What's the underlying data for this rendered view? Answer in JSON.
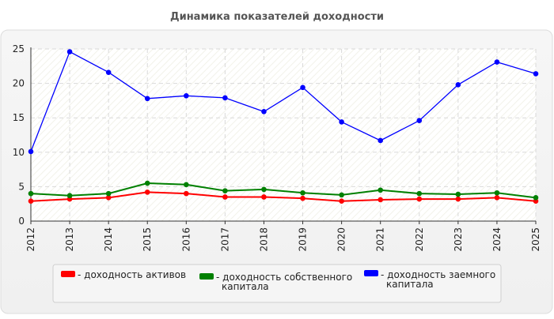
{
  "chart_data": {
    "type": "line",
    "title": "Динамика показателей доходности",
    "xlabel": "",
    "ylabel": "",
    "categories": [
      "2012",
      "2013",
      "2014",
      "2015",
      "2016",
      "2017",
      "2018",
      "2019",
      "2020",
      "2021",
      "2022",
      "2023",
      "2024",
      "2025"
    ],
    "ylim": [
      0,
      25
    ],
    "yticks": [
      0,
      5,
      10,
      15,
      20,
      25
    ],
    "grid": true,
    "legend_position": "bottom",
    "series": [
      {
        "name": "- доходность активов",
        "color": "#ff0000",
        "values": [
          2.9,
          3.2,
          3.4,
          4.2,
          4.0,
          3.5,
          3.5,
          3.3,
          2.9,
          3.1,
          3.2,
          3.2,
          3.4,
          2.9
        ]
      },
      {
        "name": "- доходность собственного капитала",
        "color": "#008000",
        "values": [
          4.0,
          3.7,
          4.0,
          5.5,
          5.3,
          4.4,
          4.6,
          4.1,
          3.8,
          4.5,
          4.0,
          3.9,
          4.1,
          3.4
        ]
      },
      {
        "name": "- доходность заемного капитала",
        "color": "#0000ff",
        "values": [
          10.1,
          24.6,
          21.6,
          17.8,
          18.2,
          17.9,
          15.9,
          19.4,
          14.4,
          11.7,
          14.6,
          19.8,
          23.1,
          21.4
        ]
      }
    ]
  },
  "legend": {
    "items": [
      {
        "line1": "- доходность активов",
        "line2": ""
      },
      {
        "line1": "- доходность собственного",
        "line2": "капитала"
      },
      {
        "line1": "- доходность заемного",
        "line2": "капитала"
      }
    ]
  }
}
